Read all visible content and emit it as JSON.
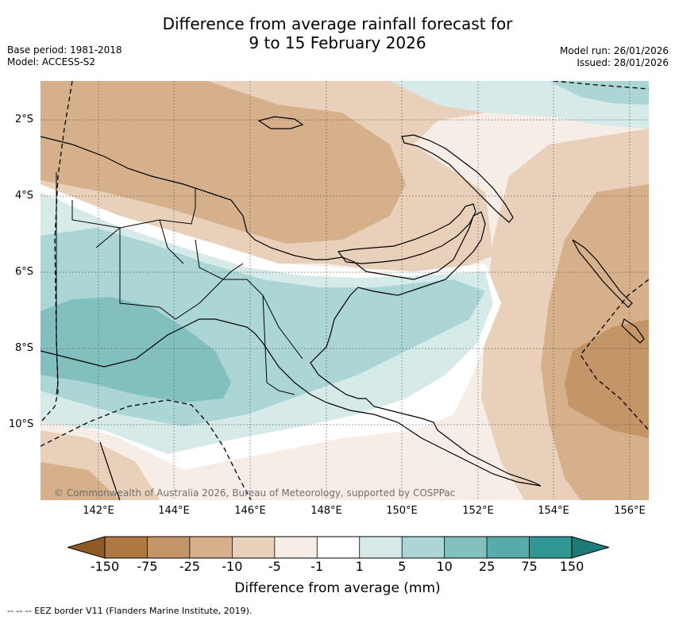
{
  "title_line1": "Difference from average rainfall forecast for",
  "title_line2": "9 to 15 February 2026",
  "base_period": "Base period: 1981-2018",
  "model": "Model: ACCESS-S2",
  "model_run": "Model run: 26/01/2026",
  "issued": "Issued: 28/01/2026",
  "copyright": "© Commonwealth of Australia 2026, Bureau of Meteorology, supported by COSPPac",
  "lat_labels": [
    "2°S",
    "4°S",
    "6°S",
    "8°S",
    "10°S"
  ],
  "lon_labels": [
    "142°E",
    "144°E",
    "146°E",
    "148°E",
    "150°E",
    "152°E",
    "154°E",
    "156°E"
  ],
  "colorbar": {
    "labels": [
      "-150",
      "-75",
      "-25",
      "-10",
      "-5",
      "-1",
      "1",
      "5",
      "10",
      "25",
      "75",
      "150"
    ],
    "colors": [
      "#8f5a26",
      "#af7840",
      "#c49566",
      "#d6b08b",
      "#e8d0bb",
      "#f6ede6",
      "#ffffff",
      "#d6eae9",
      "#acd6d5",
      "#82c0c0",
      "#57abaa",
      "#2f9892",
      "#1e7a76"
    ],
    "title": "Difference from average (mm)"
  },
  "footer": "--  --  -- EEZ border V11 (Flanders Marine Institute, 2019)."
}
